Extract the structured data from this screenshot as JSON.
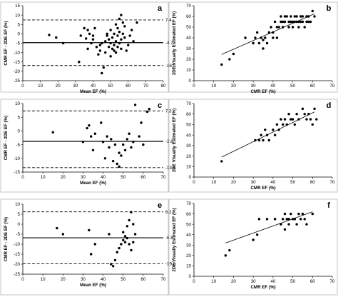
{
  "chart_data": [
    {
      "id": "a",
      "type": "scatter",
      "panel_label": "a",
      "xlabel": "Mean EF (%)",
      "ylabel": "CMR EF - 2DE EF (%)",
      "xlim": [
        0,
        80
      ],
      "ylim": [
        -25,
        15
      ],
      "xticks": [
        0,
        10,
        20,
        30,
        40,
        50,
        60,
        70,
        80
      ],
      "yticks": [
        -25,
        -20,
        -15,
        -10,
        -5,
        0,
        5,
        10,
        15
      ],
      "ref_lines": [
        {
          "kind": "upper-loa",
          "value": 7.4,
          "label": "7.4"
        },
        {
          "kind": "mean",
          "value": -4.7,
          "label": "-4.7"
        },
        {
          "kind": "lower-loa",
          "value": -16.9,
          "label": "-16.9"
        }
      ],
      "points": [
        [
          15,
          -0.6
        ],
        [
          19,
          -2
        ],
        [
          23,
          -5
        ],
        [
          32,
          -15
        ],
        [
          33,
          -1
        ],
        [
          35,
          3
        ],
        [
          36,
          -2.5
        ],
        [
          37,
          -8
        ],
        [
          37,
          2
        ],
        [
          38,
          0
        ],
        [
          39,
          -5
        ],
        [
          40,
          -3
        ],
        [
          40,
          -1
        ],
        [
          41,
          3
        ],
        [
          42,
          -7
        ],
        [
          43,
          -11
        ],
        [
          44,
          -6
        ],
        [
          44,
          -9
        ],
        [
          45,
          -5
        ],
        [
          45,
          -21
        ],
        [
          46,
          -18
        ],
        [
          47,
          -4
        ],
        [
          47,
          -10
        ],
        [
          48,
          -1
        ],
        [
          48,
          0
        ],
        [
          49,
          -3
        ],
        [
          49,
          -7
        ],
        [
          50,
          -12
        ],
        [
          50,
          -5
        ],
        [
          50,
          2
        ],
        [
          51,
          -8
        ],
        [
          51,
          -2
        ],
        [
          52,
          0
        ],
        [
          52,
          -9
        ],
        [
          52,
          -6
        ],
        [
          53,
          5
        ],
        [
          53,
          -4
        ],
        [
          53,
          -10
        ],
        [
          54,
          -1
        ],
        [
          54,
          3
        ],
        [
          54,
          -7
        ],
        [
          55,
          8
        ],
        [
          55,
          -5
        ],
        [
          55,
          1
        ],
        [
          56,
          10
        ],
        [
          56,
          -3
        ],
        [
          56,
          -8
        ],
        [
          57,
          6
        ],
        [
          57,
          0
        ],
        [
          58,
          -2
        ],
        [
          58,
          4
        ],
        [
          59,
          -9
        ],
        [
          60,
          -6
        ],
        [
          61,
          -1
        ],
        [
          62,
          2
        ],
        [
          63,
          -4
        ],
        [
          65,
          6
        ]
      ]
    },
    {
      "id": "b",
      "type": "scatter",
      "panel_label": "b",
      "xlabel": "CMR EF (%)",
      "ylabel": "2DE Visually Estimated EF (%)",
      "xlim": [
        0,
        70
      ],
      "ylim": [
        0,
        70
      ],
      "xticks": [
        0,
        10,
        20,
        30,
        40,
        50,
        60,
        70
      ],
      "yticks": [
        0,
        10,
        20,
        30,
        40,
        50,
        60,
        70
      ],
      "trendline": [
        [
          14,
          24.5
        ],
        [
          61,
          62.5
        ]
      ],
      "points": [
        [
          14,
          15
        ],
        [
          18,
          20
        ],
        [
          20,
          25
        ],
        [
          26,
          40
        ],
        [
          30,
          35
        ],
        [
          31,
          40
        ],
        [
          32,
          45
        ],
        [
          33,
          35
        ],
        [
          34,
          40
        ],
        [
          35,
          30
        ],
        [
          35,
          38
        ],
        [
          36,
          40
        ],
        [
          37,
          35
        ],
        [
          38,
          45
        ],
        [
          39,
          50
        ],
        [
          40,
          40
        ],
        [
          40,
          45
        ],
        [
          41,
          55
        ],
        [
          42,
          40
        ],
        [
          42,
          50
        ],
        [
          43,
          50
        ],
        [
          44,
          55
        ],
        [
          44,
          60
        ],
        [
          45,
          55
        ],
        [
          45,
          50
        ],
        [
          46,
          60
        ],
        [
          46,
          55
        ],
        [
          47,
          60
        ],
        [
          48,
          55
        ],
        [
          48,
          50
        ],
        [
          49,
          55
        ],
        [
          49,
          60
        ],
        [
          50,
          55
        ],
        [
          50,
          50
        ],
        [
          51,
          60
        ],
        [
          51,
          55
        ],
        [
          52,
          55
        ],
        [
          52,
          60
        ],
        [
          53,
          50
        ],
        [
          53,
          55
        ],
        [
          54,
          55
        ],
        [
          54,
          60
        ],
        [
          55,
          55
        ],
        [
          55,
          60
        ],
        [
          56,
          50
        ],
        [
          57,
          55
        ],
        [
          57,
          60
        ],
        [
          58,
          55
        ],
        [
          58,
          60
        ],
        [
          59,
          55
        ],
        [
          60,
          65
        ],
        [
          61,
          60
        ]
      ]
    },
    {
      "id": "c",
      "type": "scatter",
      "panel_label": "c",
      "xlabel": "Mean EF (%)",
      "ylabel": "CMR EF - 2DE EF (%)",
      "xlim": [
        0,
        70
      ],
      "ylim": [
        -15,
        10
      ],
      "xticks": [
        0,
        10,
        20,
        30,
        40,
        50,
        60,
        70
      ],
      "yticks": [
        -15,
        -10,
        -5,
        0,
        5,
        10
      ],
      "ref_lines": [
        {
          "kind": "upper-loa",
          "value": 7.3,
          "label": "7.3"
        },
        {
          "kind": "mean",
          "value": -3.8,
          "label": "-3.8"
        },
        {
          "kind": "lower-loa",
          "value": -13.4,
          "label": "-13.4"
        }
      ],
      "points": [
        [
          15,
          -0.5
        ],
        [
          30,
          -4
        ],
        [
          32,
          1
        ],
        [
          33,
          2
        ],
        [
          34,
          -2
        ],
        [
          35,
          -7
        ],
        [
          36,
          -1
        ],
        [
          39,
          3
        ],
        [
          40,
          -4
        ],
        [
          41,
          -10
        ],
        [
          42,
          -2
        ],
        [
          43,
          -6
        ],
        [
          44,
          -3
        ],
        [
          45,
          -11
        ],
        [
          46,
          -5
        ],
        [
          47,
          -12
        ],
        [
          48,
          -13
        ],
        [
          48,
          -8
        ],
        [
          49,
          -9
        ],
        [
          50,
          -5
        ],
        [
          51,
          -7
        ],
        [
          52,
          -3
        ],
        [
          53,
          -1
        ],
        [
          54,
          -6
        ],
        [
          55,
          -4
        ],
        [
          56,
          9.5
        ],
        [
          58,
          -2
        ],
        [
          59,
          3
        ],
        [
          60,
          -5
        ],
        [
          62,
          7
        ],
        [
          63,
          8
        ]
      ]
    },
    {
      "id": "d",
      "type": "scatter",
      "panel_label": "d",
      "xlabel": "CMR EF (%)",
      "ylabel": "2DE Visually Estimated EF (%)",
      "xlim": [
        0,
        70
      ],
      "ylim": [
        0,
        70
      ],
      "xticks": [
        0,
        10,
        20,
        30,
        40,
        50,
        60,
        70
      ],
      "yticks": [
        0,
        10,
        20,
        30,
        40,
        50,
        60,
        70
      ],
      "trendline": [
        [
          14,
          19
        ],
        [
          61,
          62
        ]
      ],
      "points": [
        [
          14,
          15
        ],
        [
          31,
          35
        ],
        [
          33,
          35
        ],
        [
          34,
          40
        ],
        [
          35,
          35
        ],
        [
          36,
          45
        ],
        [
          37,
          40
        ],
        [
          38,
          35
        ],
        [
          40,
          45
        ],
        [
          41,
          40
        ],
        [
          42,
          50
        ],
        [
          43,
          45
        ],
        [
          44,
          55
        ],
        [
          45,
          50
        ],
        [
          46,
          55
        ],
        [
          47,
          50
        ],
        [
          48,
          60
        ],
        [
          49,
          55
        ],
        [
          50,
          55
        ],
        [
          51,
          50
        ],
        [
          52,
          60
        ],
        [
          53,
          55
        ],
        [
          55,
          65
        ],
        [
          56,
          60
        ],
        [
          57,
          55
        ],
        [
          58,
          60
        ],
        [
          59,
          55
        ],
        [
          60,
          50
        ],
        [
          61,
          65
        ],
        [
          62,
          55
        ]
      ]
    },
    {
      "id": "e",
      "type": "scatter",
      "panel_label": "e",
      "xlabel": "Mean EF (%)",
      "ylabel": "CMR EF - 2DE EF (%)",
      "xlim": [
        0,
        70
      ],
      "ylim": [
        -25,
        10
      ],
      "xticks": [
        0,
        10,
        20,
        30,
        40,
        50,
        60,
        70
      ],
      "yticks": [
        -25,
        -20,
        -15,
        -10,
        -5,
        0,
        5,
        10
      ],
      "ref_lines": [
        {
          "kind": "upper-loa",
          "value": 6.2,
          "label": "6.2"
        },
        {
          "kind": "mean",
          "value": -6.8,
          "label": "-6.8"
        },
        {
          "kind": "lower-loa",
          "value": -19.8,
          "label": "-19.8"
        }
      ],
      "points": [
        [
          17,
          -2
        ],
        [
          20,
          -5
        ],
        [
          33,
          -3
        ],
        [
          34,
          -15
        ],
        [
          36,
          -10
        ],
        [
          43,
          -5
        ],
        [
          44,
          -20
        ],
        [
          45,
          -21
        ],
        [
          46,
          -18
        ],
        [
          47,
          -14
        ],
        [
          48,
          -12
        ],
        [
          49,
          -10
        ],
        [
          50,
          -8
        ],
        [
          50,
          -4
        ],
        [
          51,
          -9
        ],
        [
          51,
          -6
        ],
        [
          52,
          -7
        ],
        [
          52,
          -1
        ],
        [
          53,
          2
        ],
        [
          53,
          -10
        ],
        [
          54,
          -13
        ],
        [
          54,
          6
        ],
        [
          55,
          0
        ],
        [
          55,
          -9
        ],
        [
          56,
          -5
        ]
      ]
    },
    {
      "id": "f",
      "type": "scatter",
      "panel_label": "f",
      "xlabel": "CMR EF (%)",
      "ylabel": "2DE Visually Estimated EF (%)",
      "xlim": [
        0,
        70
      ],
      "ylim": [
        0,
        70
      ],
      "xticks": [
        0,
        10,
        20,
        30,
        40,
        50,
        60,
        70
      ],
      "yticks": [
        0,
        10,
        20,
        30,
        40,
        50,
        60,
        70
      ],
      "trendline": [
        [
          16,
          32
        ],
        [
          60,
          62
        ]
      ],
      "points": [
        [
          16,
          20
        ],
        [
          18,
          25
        ],
        [
          30,
          35
        ],
        [
          32,
          40
        ],
        [
          33,
          55
        ],
        [
          37,
          55
        ],
        [
          41,
          55
        ],
        [
          44,
          50
        ],
        [
          45,
          55
        ],
        [
          46,
          60
        ],
        [
          46,
          45
        ],
        [
          47,
          55
        ],
        [
          48,
          50
        ],
        [
          48,
          55
        ],
        [
          49,
          60
        ],
        [
          50,
          55
        ],
        [
          51,
          55
        ],
        [
          52,
          50
        ],
        [
          53,
          60
        ],
        [
          54,
          55
        ],
        [
          55,
          60
        ],
        [
          56,
          55
        ],
        [
          57,
          50
        ],
        [
          60,
          60
        ]
      ]
    }
  ]
}
